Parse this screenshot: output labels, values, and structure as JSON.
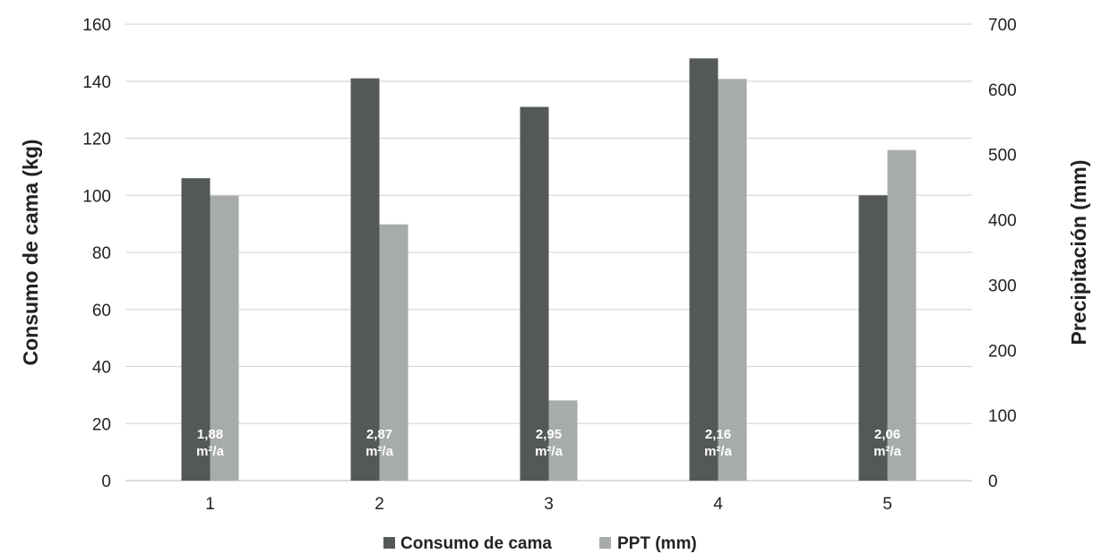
{
  "chart_data": {
    "type": "bar",
    "categories": [
      "1",
      "2",
      "3",
      "4",
      "5"
    ],
    "series": [
      {
        "name": "Consumo de cama",
        "axis": "left",
        "color": "#545858",
        "values": [
          106,
          141,
          131,
          148,
          100
        ]
      },
      {
        "name": "PPT (mm)",
        "axis": "right",
        "color": "#a7abab",
        "values": [
          437,
          393,
          123,
          616,
          507
        ]
      }
    ],
    "data_labels": [
      {
        "line1": "1,88",
        "line2": "m²/a"
      },
      {
        "line1": "2,87",
        "line2": "m²/a"
      },
      {
        "line1": "2,95",
        "line2": "m²/a"
      },
      {
        "line1": "2,16",
        "line2": "m²/a"
      },
      {
        "line1": "2,06",
        "line2": "m²/a"
      }
    ],
    "ylabel": "Consumo de cama (kg)",
    "y2label": "Precipitación (mm)",
    "ylim": [
      0,
      160
    ],
    "y2lim": [
      0,
      700
    ],
    "yticks": [
      "0",
      "20",
      "40",
      "60",
      "80",
      "100",
      "120",
      "140",
      "160"
    ],
    "y2ticks": [
      "0",
      "100",
      "200",
      "300",
      "400",
      "500",
      "600",
      "700"
    ],
    "grid": true,
    "legend_position": "bottom-center",
    "colors": {
      "gridline": "#d9d9d9",
      "axis": "#c8c8c8"
    }
  }
}
